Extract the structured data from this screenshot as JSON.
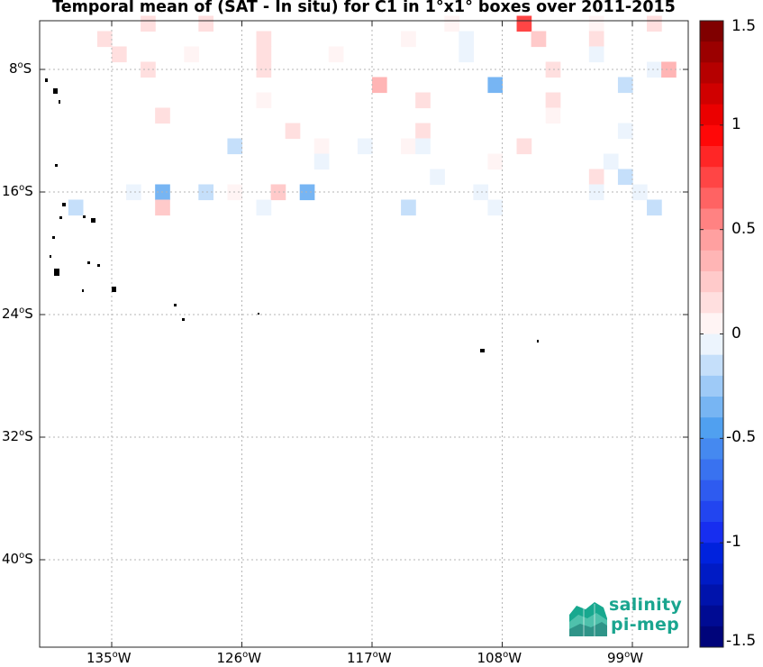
{
  "title": "Temporal mean of (SAT - In situ) for C1 in 1°x1° boxes over 2011-2015",
  "chart_data": {
    "type": "heatmap",
    "variable": "SAT - In situ",
    "lon_range": [
      -140.5,
      -96
    ],
    "lat_range": [
      -44.5,
      -4
    ],
    "cell_size_deg": 1,
    "x_ticks": [
      {
        "value": -135,
        "label": "135"
      },
      {
        "value": -126,
        "label": "126"
      },
      {
        "value": -117,
        "label": "117"
      },
      {
        "value": -108,
        "label": "108"
      },
      {
        "value": -99,
        "label": "99"
      }
    ],
    "y_ticks": [
      {
        "value": -8,
        "label": "8"
      },
      {
        "value": -16,
        "label": "16"
      },
      {
        "value": -24,
        "label": "24"
      },
      {
        "value": -32,
        "label": "32"
      },
      {
        "value": -40,
        "label": "40"
      }
    ],
    "colorbar": {
      "min": -1.5,
      "max": 1.5,
      "ticks": [
        "1.5",
        "1",
        "0.5",
        "0",
        "-0.5",
        "-1",
        "-1.5"
      ]
    },
    "cells": [
      [
        -132.5,
        -5,
        0.1
      ],
      [
        -128.5,
        -5,
        0.1
      ],
      [
        -111.5,
        -5,
        0.05
      ],
      [
        -106.5,
        -5,
        0.8
      ],
      [
        -101.5,
        -5,
        0.05
      ],
      [
        -97.5,
        -5,
        0.1
      ],
      [
        -135.5,
        -6,
        0.1
      ],
      [
        -124.5,
        -6,
        0.1
      ],
      [
        -114.5,
        -6,
        0.05
      ],
      [
        -110.5,
        -6,
        -0.05
      ],
      [
        -105.5,
        -6,
        0.2
      ],
      [
        -101.5,
        -6,
        0.1
      ],
      [
        -134.5,
        -7,
        0.1
      ],
      [
        -129.5,
        -7,
        0.05
      ],
      [
        -124.5,
        -7,
        0.15
      ],
      [
        -119.5,
        -7,
        0.05
      ],
      [
        -110.5,
        -7,
        -0.05
      ],
      [
        -101.5,
        -7,
        -0.05
      ],
      [
        -132.5,
        -8,
        0.1
      ],
      [
        -124.5,
        -8,
        0.1
      ],
      [
        -104.5,
        -8,
        0.1
      ],
      [
        -97.5,
        -8,
        -0.05
      ],
      [
        -96.5,
        -8,
        0.4
      ],
      [
        -116.5,
        -9,
        0.4
      ],
      [
        -108.5,
        -9,
        -0.3
      ],
      [
        -99.5,
        -9,
        -0.1
      ],
      [
        -124.5,
        -10,
        0.05
      ],
      [
        -113.5,
        -10,
        0.1
      ],
      [
        -104.5,
        -10,
        0.1
      ],
      [
        -131.5,
        -11,
        0.1
      ],
      [
        -104.5,
        -11,
        0.05
      ],
      [
        -122.5,
        -12,
        0.1
      ],
      [
        -113.5,
        -12,
        0.1
      ],
      [
        -99.5,
        -12,
        -0.05
      ],
      [
        -126.5,
        -13,
        -0.1
      ],
      [
        -120.5,
        -13,
        0.05
      ],
      [
        -117.5,
        -13,
        -0.05
      ],
      [
        -114.5,
        -13,
        0.05
      ],
      [
        -113.5,
        -13,
        -0.05
      ],
      [
        -106.5,
        -13,
        0.1
      ],
      [
        -120.5,
        -14,
        -0.05
      ],
      [
        -108.5,
        -14,
        0.05
      ],
      [
        -100.5,
        -14,
        -0.05
      ],
      [
        -112.5,
        -15,
        -0.05
      ],
      [
        -101.5,
        -15,
        0.1
      ],
      [
        -99.5,
        -15,
        -0.1
      ],
      [
        -133.5,
        -16,
        -0.05
      ],
      [
        -131.5,
        -16,
        -0.3
      ],
      [
        -128.5,
        -16,
        -0.1
      ],
      [
        -126.5,
        -16,
        0.05
      ],
      [
        -123.5,
        -16,
        0.2
      ],
      [
        -121.5,
        -16,
        -0.3
      ],
      [
        -109.5,
        -16,
        -0.05
      ],
      [
        -101.5,
        -16,
        -0.05
      ],
      [
        -98.5,
        -16,
        -0.05
      ],
      [
        -137.5,
        -17,
        -0.1
      ],
      [
        -131.5,
        -17,
        0.2
      ],
      [
        -124.5,
        -17,
        -0.05
      ],
      [
        -114.5,
        -17,
        -0.1
      ],
      [
        -108.5,
        -17,
        -0.05
      ],
      [
        -97.5,
        -17,
        -0.1
      ]
    ]
  },
  "logo": {
    "line1": "salinity",
    "line2": "pi-mep"
  }
}
